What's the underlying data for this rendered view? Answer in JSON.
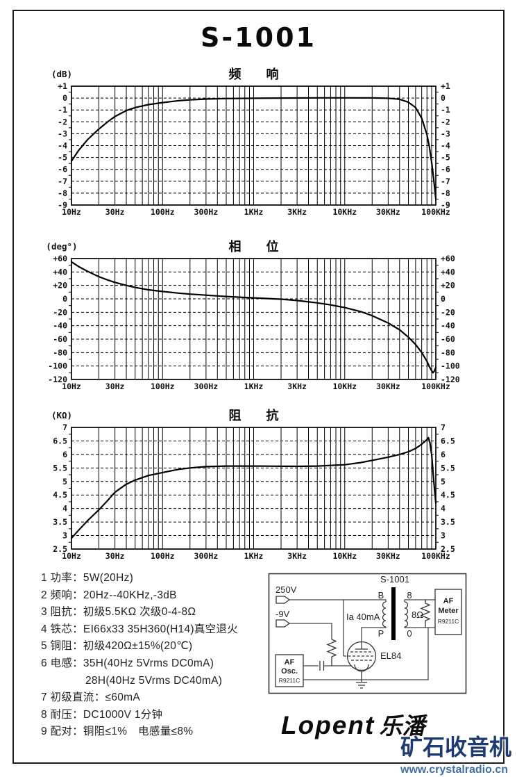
{
  "page": {
    "title": "S-1001",
    "logo": {
      "latin": "Lopent",
      "cjk": "乐潘"
    },
    "watermark": {
      "line1": "矿石收音机",
      "line2": "www.crystalradio.cn",
      "color1": "#1d3b72",
      "color2": "#3f6fa5"
    }
  },
  "chart_data": [
    {
      "type": "line",
      "title": "频　　响",
      "unit": "(dB)",
      "x_scale": "log",
      "xlim": [
        10,
        100000
      ],
      "x_tick_values": [
        10,
        30,
        100,
        300,
        1000,
        3000,
        10000,
        30000,
        100000
      ],
      "x_tick_labels": [
        "10Hz",
        "30Hz",
        "100Hz",
        "300Hz",
        "1KHz",
        "3KHz",
        "10KHz",
        "30KHz",
        "100KHz"
      ],
      "ylim": [
        -9,
        1
      ],
      "y_major": 1,
      "y_minor": 0.5,
      "y_labels": [
        "+1",
        "0",
        "-1",
        "-2",
        "-3",
        "-4",
        "-5",
        "-6",
        "-7",
        "-8",
        "-9"
      ],
      "curve": [
        [
          10,
          -5.3
        ],
        [
          12,
          -4.4
        ],
        [
          15,
          -3.5
        ],
        [
          20,
          -2.6
        ],
        [
          25,
          -2.0
        ],
        [
          30,
          -1.55
        ],
        [
          40,
          -1.05
        ],
        [
          50,
          -0.8
        ],
        [
          70,
          -0.55
        ],
        [
          100,
          -0.38
        ],
        [
          150,
          -0.22
        ],
        [
          200,
          -0.15
        ],
        [
          300,
          -0.08
        ],
        [
          500,
          -0.04
        ],
        [
          1000,
          -0.02
        ],
        [
          2000,
          0
        ],
        [
          5000,
          0.02
        ],
        [
          10000,
          0.02
        ],
        [
          20000,
          0.01
        ],
        [
          30000,
          -0.02
        ],
        [
          40000,
          -0.1
        ],
        [
          50000,
          -0.35
        ],
        [
          60000,
          -0.8
        ],
        [
          70000,
          -1.7
        ],
        [
          80000,
          -3.1
        ],
        [
          85000,
          -4.1
        ],
        [
          90000,
          -5.4
        ],
        [
          95000,
          -6.9
        ],
        [
          100000,
          -8.5
        ]
      ]
    },
    {
      "type": "line",
      "title": "相　　位",
      "unit": "(deg°)",
      "x_scale": "log",
      "xlim": [
        10,
        100000
      ],
      "x_tick_values": [
        10,
        30,
        100,
        300,
        1000,
        3000,
        10000,
        30000,
        100000
      ],
      "x_tick_labels": [
        "10Hz",
        "30Hz",
        "100Hz",
        "300Hz",
        "1KHz",
        "3KHz",
        "10KHz",
        "30KHz",
        "100KHz"
      ],
      "ylim": [
        -120,
        60
      ],
      "y_major": 20,
      "y_minor": 10,
      "y_labels": [
        "+60",
        "+40",
        "+20",
        "0",
        "-20",
        "-40",
        "-60",
        "-80",
        "-100",
        "-120"
      ],
      "curve": [
        [
          10,
          55
        ],
        [
          12,
          48
        ],
        [
          15,
          41
        ],
        [
          20,
          33
        ],
        [
          25,
          28
        ],
        [
          30,
          24.5
        ],
        [
          40,
          20
        ],
        [
          50,
          17
        ],
        [
          70,
          13.5
        ],
        [
          100,
          11
        ],
        [
          150,
          8.5
        ],
        [
          200,
          7
        ],
        [
          300,
          5.5
        ],
        [
          500,
          3.5
        ],
        [
          700,
          2.5
        ],
        [
          1000,
          1.5
        ],
        [
          2000,
          -0.5
        ],
        [
          3000,
          -2.5
        ],
        [
          5000,
          -6
        ],
        [
          7000,
          -9
        ],
        [
          10000,
          -13
        ],
        [
          15000,
          -19
        ],
        [
          20000,
          -25
        ],
        [
          30000,
          -36
        ],
        [
          40000,
          -46
        ],
        [
          50000,
          -57
        ],
        [
          60000,
          -68
        ],
        [
          70000,
          -80
        ],
        [
          80000,
          -93
        ],
        [
          85000,
          -101
        ],
        [
          90000,
          -107
        ],
        [
          93000,
          -110
        ],
        [
          96000,
          -108
        ],
        [
          100000,
          -102
        ]
      ]
    },
    {
      "type": "line",
      "title": "阻　　抗",
      "unit": "(KΩ)",
      "x_scale": "log",
      "xlim": [
        10,
        100000
      ],
      "x_tick_values": [
        10,
        30,
        100,
        300,
        1000,
        3000,
        10000,
        30000,
        100000
      ],
      "x_tick_labels": [
        "10Hz",
        "30Hz",
        "100Hz",
        "300Hz",
        "1KHz",
        "3KHz",
        "10KHz",
        "30KHz",
        "100KHz"
      ],
      "ylim": [
        2.5,
        7
      ],
      "y_major": 0.5,
      "y_minor": 0.25,
      "y_labels": [
        "7",
        "6.5",
        "6",
        "5.5",
        "5",
        "4.5",
        "4",
        "3.5",
        "3",
        "2.5"
      ],
      "curve": [
        [
          10,
          2.9
        ],
        [
          12,
          3.2
        ],
        [
          15,
          3.55
        ],
        [
          20,
          3.95
        ],
        [
          25,
          4.3
        ],
        [
          30,
          4.6
        ],
        [
          40,
          4.9
        ],
        [
          50,
          5.05
        ],
        [
          70,
          5.22
        ],
        [
          100,
          5.33
        ],
        [
          150,
          5.45
        ],
        [
          200,
          5.5
        ],
        [
          300,
          5.55
        ],
        [
          500,
          5.57
        ],
        [
          1000,
          5.57
        ],
        [
          3000,
          5.56
        ],
        [
          5000,
          5.57
        ],
        [
          10000,
          5.62
        ],
        [
          15000,
          5.7
        ],
        [
          20000,
          5.78
        ],
        [
          30000,
          5.9
        ],
        [
          40000,
          6.0
        ],
        [
          50000,
          6.1
        ],
        [
          60000,
          6.22
        ],
        [
          70000,
          6.38
        ],
        [
          80000,
          6.55
        ],
        [
          83000,
          6.62
        ],
        [
          86000,
          6.45
        ],
        [
          90000,
          6.0
        ],
        [
          95000,
          5.0
        ],
        [
          100000,
          4.2
        ]
      ]
    }
  ],
  "specs": {
    "items": [
      {
        "text": "1 功率：5W(20Hz)",
        "indent": false
      },
      {
        "text": "2 频响：20Hz--40KHz,-3dB",
        "indent": false
      },
      {
        "text": "3 阻抗：初级5.5KΩ 次级0-4-8Ω",
        "indent": false
      },
      {
        "text": "4 铁芯：EI66x33 35H360(H14)真空退火",
        "indent": false
      },
      {
        "text": "5 铜阻：初级420Ω±15%(20℃)",
        "indent": false
      },
      {
        "text": "6 电感：35H(40Hz 5Vrms DC0mA)",
        "indent": false
      },
      {
        "text": "28H(40Hz 5Vrms DC40mA)",
        "indent": true
      },
      {
        "text": "7 初级直流：≤60mA",
        "indent": false
      },
      {
        "text": "8 耐压：DC1000V 1分钟",
        "indent": false
      },
      {
        "text": "9 配对：铜阻≤1%　电感量≤8%",
        "indent": false
      }
    ]
  },
  "circuit": {
    "transformer_label": "S-1001",
    "supply_b": "250V",
    "supply_bias": "-9V",
    "terminal_top_primary": "B",
    "terminal_bottom_primary": "P",
    "terminal_top_secondary": "8",
    "terminal_bottom_secondary": "0",
    "plate_current": "Ia 40mA",
    "tube": "EL84",
    "load": "8Ω",
    "osc": [
      "AF",
      "Osc.",
      "R9211C"
    ],
    "meter": [
      "AF",
      "Meter",
      "R9211C"
    ]
  }
}
